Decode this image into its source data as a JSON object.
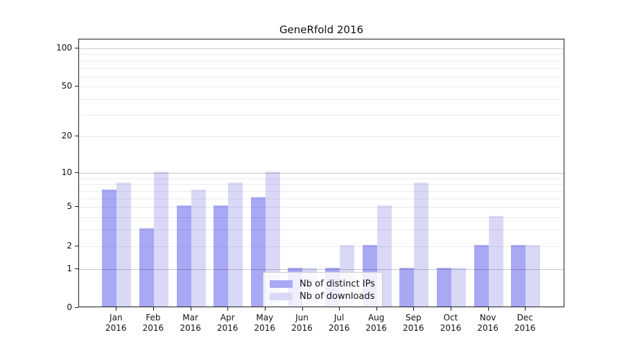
{
  "chart_data": {
    "type": "bar",
    "title": "GeneRfold 2016",
    "scale": "log1p",
    "categories": [
      "Jan",
      "Feb",
      "Mar",
      "Apr",
      "May",
      "Jun",
      "Jul",
      "Aug",
      "Sep",
      "Oct",
      "Nov",
      "Dec"
    ],
    "x_year_label": "2016",
    "series": [
      {
        "name": "Nb of distinct IPs",
        "key": "distinct-ips",
        "color": "#a8a8f5",
        "values": [
          7,
          3,
          5,
          5,
          6,
          1,
          1,
          2,
          1,
          1,
          2,
          2
        ]
      },
      {
        "name": "Nb of downloads",
        "key": "downloads",
        "color": "#d9d9f7",
        "values": [
          8,
          10,
          7,
          8,
          10,
          1,
          2,
          5,
          8,
          1,
          4,
          2
        ]
      }
    ],
    "yticks": [
      0,
      1,
      2,
      5,
      10,
      20,
      50,
      100
    ],
    "ylim": [
      0,
      117
    ],
    "grid": {
      "major": [
        1,
        10,
        100
      ],
      "minor": [
        2,
        3,
        4,
        5,
        6,
        7,
        8,
        9,
        20,
        30,
        40,
        50,
        60,
        70,
        80,
        90
      ]
    },
    "legend_position": "lower center-left"
  }
}
